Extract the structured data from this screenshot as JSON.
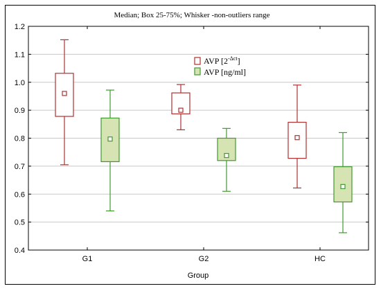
{
  "chart_data": {
    "type": "boxplot",
    "title": "Median; Box 25-75%; Whisker -non-outliers range",
    "xlabel": "Group",
    "ylabel": "",
    "categories": [
      "G1",
      "G2",
      "HC"
    ],
    "ylim": [
      0.4,
      1.2
    ],
    "yticks": [
      "0.4",
      "0.5",
      "0.6",
      "0.7",
      "0.8",
      "0.9",
      "1.0",
      "1.1",
      "1.2"
    ],
    "grid": true,
    "legend_position": "top-center",
    "series": [
      {
        "name_main": "AVP [2",
        "name_sup": "-Δct",
        "name_end": "]",
        "color": "#b03030",
        "fill": "#ffffff",
        "boxes": [
          {
            "min": 0.705,
            "q1": 0.878,
            "median": 0.96,
            "q3": 1.032,
            "max": 1.152
          },
          {
            "min": 0.83,
            "q1": 0.887,
            "median": 0.9,
            "q3": 0.962,
            "max": 0.992
          },
          {
            "min": 0.622,
            "q1": 0.728,
            "median": 0.802,
            "q3": 0.857,
            "max": 0.99
          }
        ]
      },
      {
        "name_main": "AVP [ng/ml]",
        "name_sup": "",
        "name_end": "",
        "color": "#3f9a2e",
        "fill": "#d6e3b2",
        "boxes": [
          {
            "min": 0.54,
            "q1": 0.716,
            "median": 0.797,
            "q3": 0.872,
            "max": 0.972
          },
          {
            "min": 0.61,
            "q1": 0.72,
            "median": 0.738,
            "q3": 0.8,
            "max": 0.835
          },
          {
            "min": 0.462,
            "q1": 0.572,
            "median": 0.627,
            "q3": 0.698,
            "max": 0.82
          }
        ]
      }
    ]
  }
}
